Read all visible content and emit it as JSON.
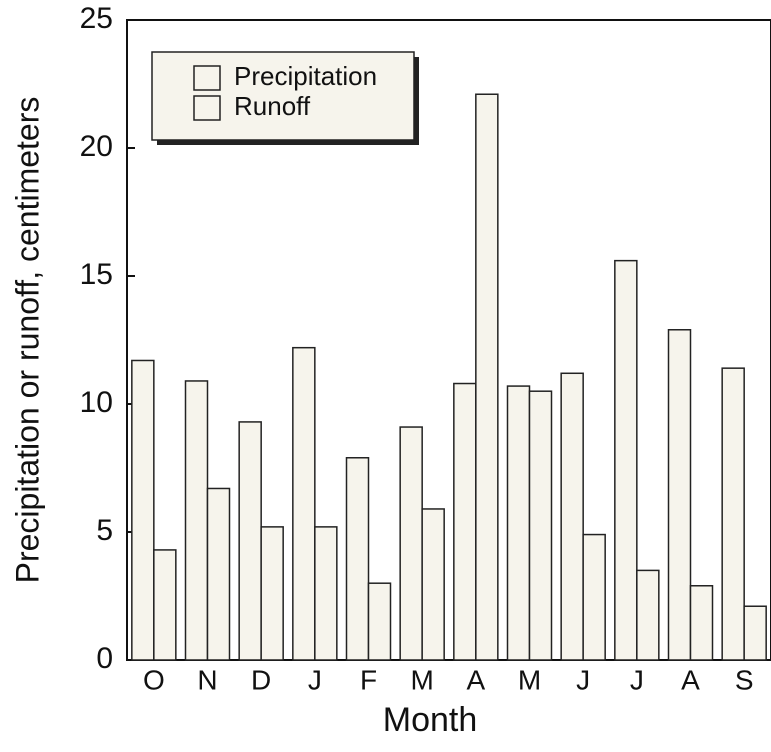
{
  "chart_data": {
    "type": "bar",
    "x_label": "Month",
    "y_label": "Precipitation or runoff, centimeters",
    "categories": [
      "O",
      "N",
      "D",
      "J",
      "F",
      "M",
      "A",
      "M",
      "J",
      "J",
      "A",
      "S"
    ],
    "series": [
      {
        "name": "Precipitation",
        "color": "#f6f4ec",
        "values": [
          11.7,
          10.9,
          9.3,
          12.2,
          7.9,
          9.1,
          10.8,
          10.7,
          11.2,
          15.6,
          12.9,
          11.4
        ]
      },
      {
        "name": "Runoff",
        "color": "#f6f4ec",
        "values": [
          4.3,
          6.7,
          5.2,
          5.2,
          3.0,
          5.9,
          22.1,
          10.5,
          4.9,
          3.5,
          2.9,
          2.1
        ]
      }
    ],
    "ylim": [
      0,
      25
    ],
    "yticks": [
      0,
      5,
      10,
      15,
      20,
      25
    ],
    "legend": "upper-left"
  }
}
